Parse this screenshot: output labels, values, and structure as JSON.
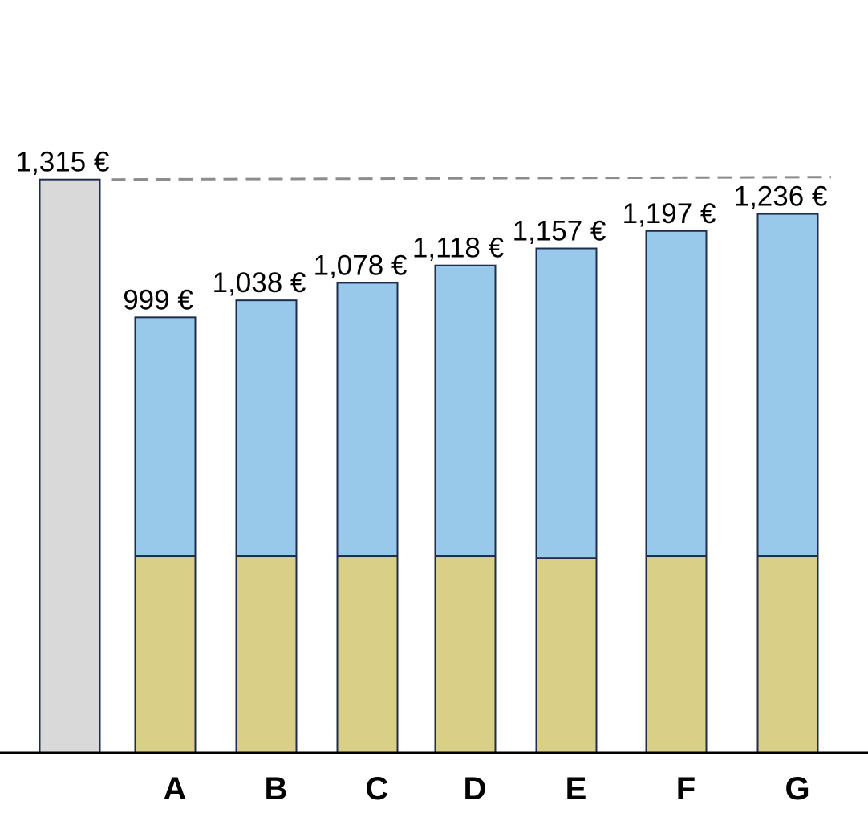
{
  "chart_data": {
    "type": "bar",
    "stacked": true,
    "categories": [
      "",
      "A",
      "B",
      "C",
      "D",
      "E",
      "F",
      "G"
    ],
    "totals": [
      1315,
      999,
      1038,
      1078,
      1118,
      1157,
      1197,
      1236
    ],
    "total_labels": [
      "1,315 €",
      "999 €",
      "1,038 €",
      "1,078 €",
      "1,118 €",
      "1,157 €",
      "1,197 €",
      "1,236 €"
    ],
    "segments": {
      "base": [
        null,
        451,
        451,
        451,
        451,
        447,
        451,
        451
      ],
      "top": [
        null,
        548,
        587,
        627,
        667,
        710,
        746,
        785
      ]
    },
    "reference_line": {
      "value": 1315,
      "style": "dashed"
    },
    "xlabel": "",
    "ylabel": "",
    "ylim": [
      0,
      1320
    ],
    "legend": "none",
    "grid": false,
    "axis_visible": false,
    "colors": {
      "reference_bar": "#D9D9D9",
      "base_segment": "#D9CF86",
      "top_segment": "#99C9EA",
      "bar_outline": "#1F2D4D",
      "dashed_line": "#8C8C8C",
      "baseline": "#000000"
    }
  }
}
